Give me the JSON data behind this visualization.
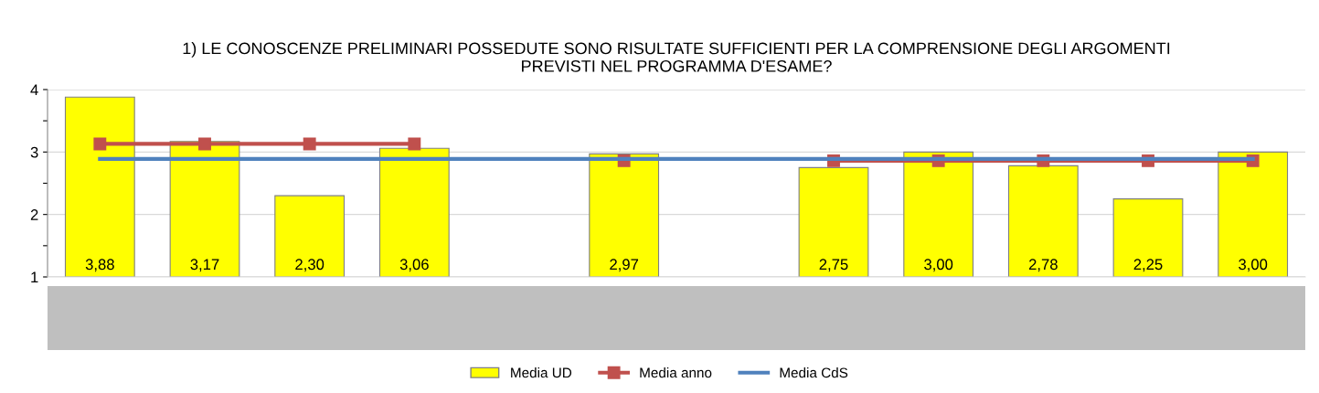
{
  "chart_data": {
    "type": "bar",
    "title": "1) LE CONOSCENZE PRELIMINARI POSSEDUTE SONO RISULTATE SUFFICIENTI PER LA COMPRENSIONE DEGLI ARGOMENTI\nPREVISTI NEL PROGRAMMA D'ESAME?",
    "categories": [
      null,
      null,
      null,
      null,
      null,
      null,
      null,
      null,
      null,
      null,
      null,
      null
    ],
    "series": [
      {
        "name": "Media UD",
        "color": "#ffff00",
        "values": [
          3.88,
          3.17,
          2.3,
          3.06,
          null,
          2.97,
          null,
          2.75,
          3.0,
          2.78,
          2.25,
          3.0
        ],
        "value_labels": [
          "3,88",
          "3,17",
          "2,30",
          "3,06",
          null,
          "2,97",
          null,
          "2,75",
          "3,00",
          "2,78",
          "2,25",
          "3,00"
        ]
      },
      {
        "name": "Media anno",
        "type": "line",
        "color": "#c0504d",
        "marker": "square",
        "values": [
          3.13,
          3.13,
          3.13,
          3.13,
          null,
          2.86,
          null,
          2.86,
          2.86,
          2.86,
          2.86,
          2.86
        ]
      },
      {
        "name": "Media CdS",
        "type": "line",
        "color": "#4f81bd",
        "marker": "none",
        "values": [
          2.89,
          2.89,
          2.89,
          2.89,
          2.89,
          2.89,
          2.89,
          2.89,
          2.89,
          2.89,
          2.89,
          2.89
        ]
      }
    ],
    "ylim": [
      1,
      4
    ],
    "yticks": [
      1,
      {
        "value": 1.5,
        "label": null
      },
      2,
      {
        "value": 2.5,
        "label": null
      },
      3,
      {
        "value": 3.5,
        "label": null
      },
      4
    ],
    "grid": "y",
    "legend": "bottom"
  }
}
